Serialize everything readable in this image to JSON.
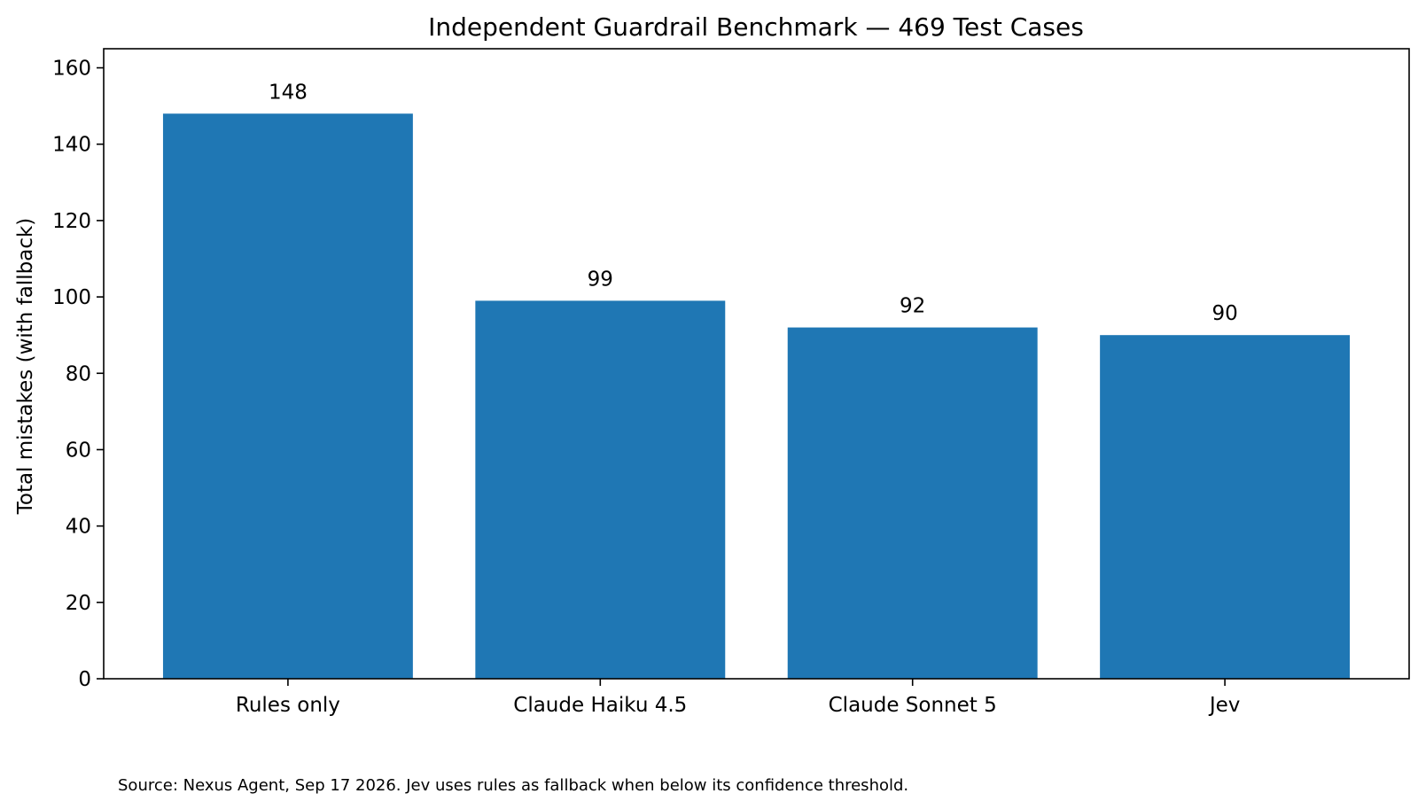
{
  "chart_data": {
    "type": "bar",
    "title": "Independent Guardrail Benchmark — 469 Test Cases",
    "xlabel": "",
    "ylabel": "Total mistakes (with fallback)",
    "categories": [
      "Rules only",
      "Claude Haiku 4.5",
      "Claude Sonnet 5",
      "Jev"
    ],
    "values": [
      148,
      99,
      92,
      90
    ],
    "data_labels": [
      "148",
      "99",
      "92",
      "90"
    ],
    "ylim": [
      0,
      165
    ],
    "yticks": [
      0,
      20,
      40,
      60,
      80,
      100,
      120,
      140,
      160
    ],
    "grid": false,
    "bar_color": "#1f77b4"
  },
  "source_note": "Source: Nexus Agent, Sep 17 2026. Jev uses rules as fallback when below its confidence threshold."
}
